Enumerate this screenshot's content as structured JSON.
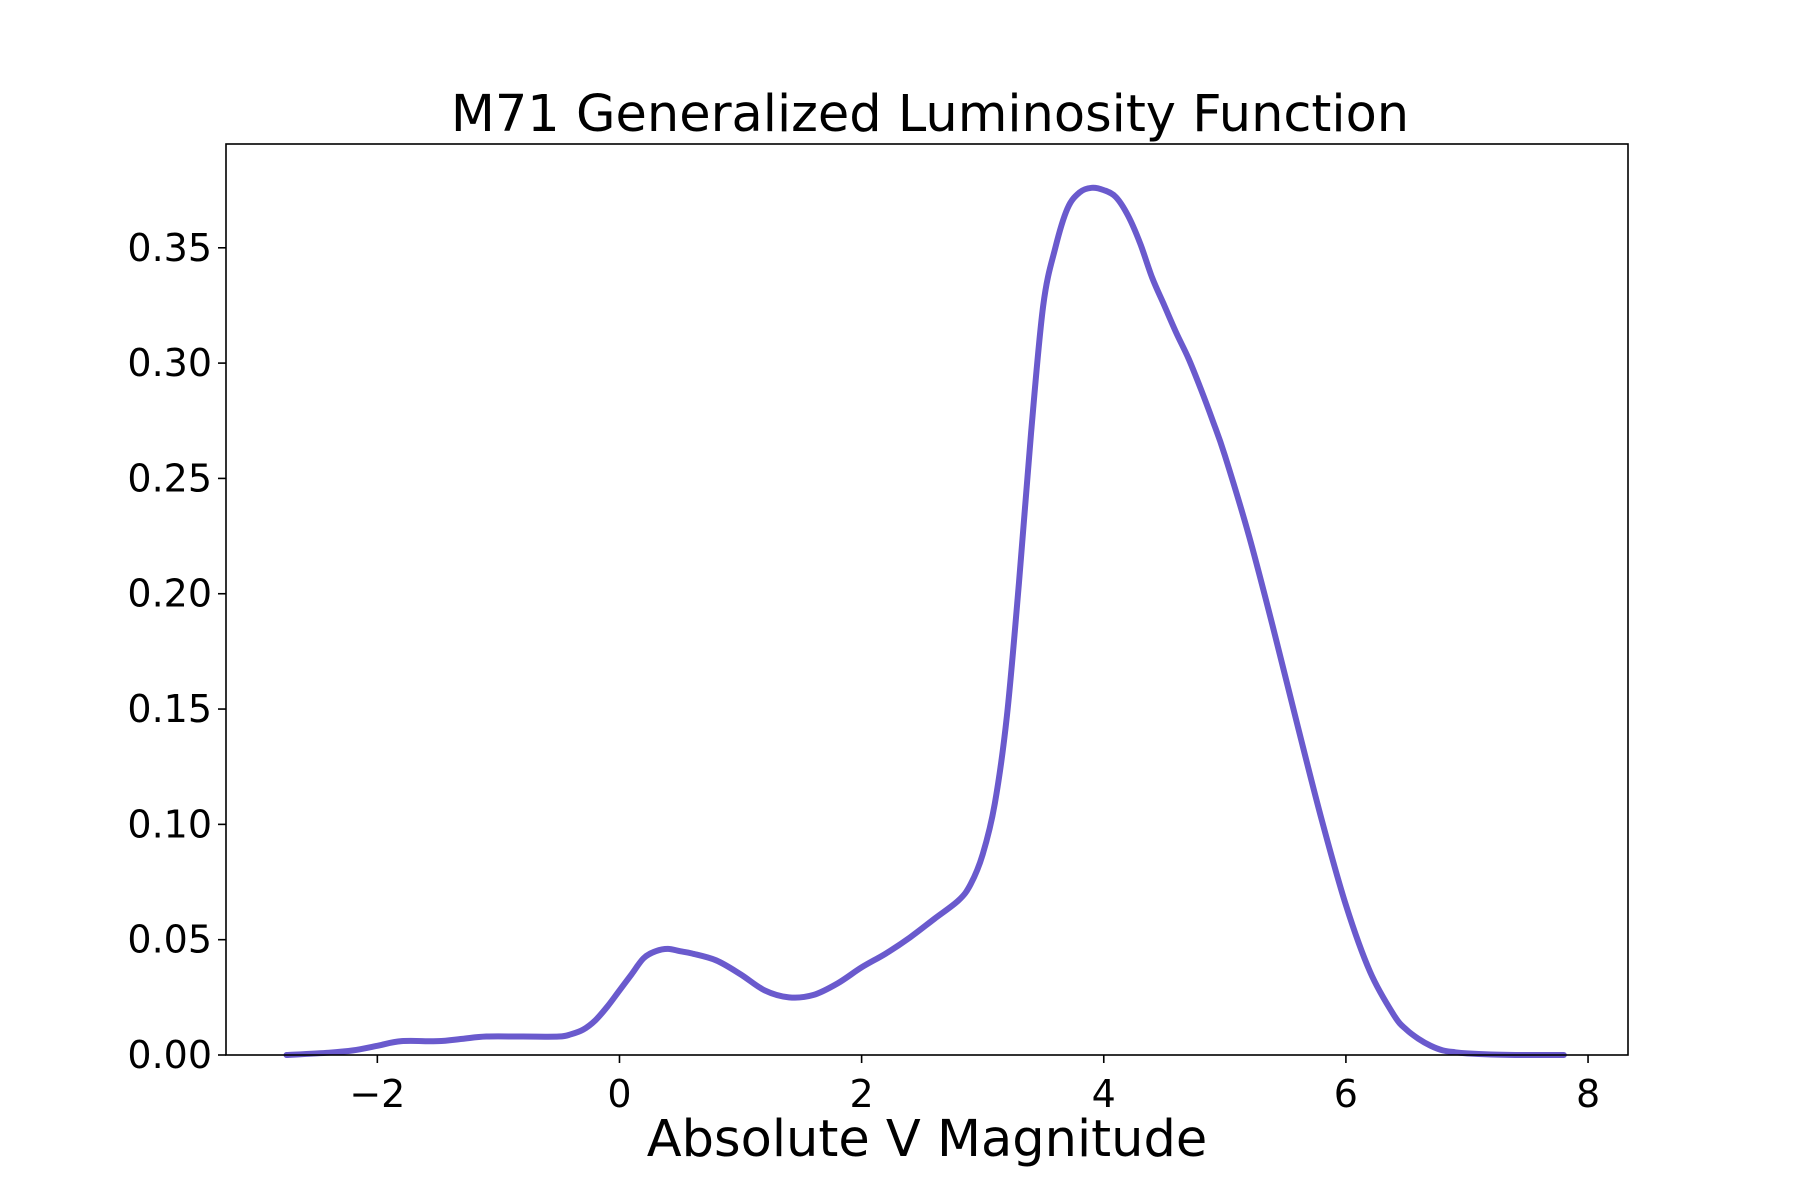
{
  "chart_data": {
    "type": "line",
    "title": "M71 Generalized Luminosity Function",
    "xlabel": "Absolute V Magnitude",
    "ylabel": "",
    "xlim": [
      -3.25,
      8.33
    ],
    "ylim": [
      0.0,
      0.395
    ],
    "xticks": [
      -2,
      0,
      2,
      4,
      6,
      8
    ],
    "xtick_labels": [
      "−2",
      "0",
      "2",
      "4",
      "6",
      "8"
    ],
    "yticks": [
      0.0,
      0.05,
      0.1,
      0.15,
      0.2,
      0.25,
      0.3,
      0.35
    ],
    "ytick_labels": [
      "0.00",
      "0.05",
      "0.10",
      "0.15",
      "0.20",
      "0.25",
      "0.30",
      "0.35"
    ],
    "grid": false,
    "legend": "none",
    "series": [
      {
        "color": "#6a5acd",
        "x": [
          -2.75,
          -2.4,
          -2.2,
          -2.0,
          -1.8,
          -1.5,
          -1.3,
          -1.1,
          -0.8,
          -0.5,
          -0.4,
          -0.3,
          -0.2,
          -0.1,
          0.0,
          0.1,
          0.2,
          0.3,
          0.4,
          0.5,
          0.6,
          0.8,
          1.0,
          1.2,
          1.4,
          1.6,
          1.8,
          2.0,
          2.2,
          2.4,
          2.6,
          2.8,
          2.9,
          3.0,
          3.1,
          3.2,
          3.3,
          3.4,
          3.5,
          3.6,
          3.7,
          3.8,
          3.9,
          4.0,
          4.1,
          4.2,
          4.3,
          4.4,
          4.5,
          4.6,
          4.7,
          4.8,
          4.9,
          5.0,
          5.2,
          5.4,
          5.6,
          5.8,
          6.0,
          6.2,
          6.4,
          6.5,
          6.6,
          6.7,
          6.8,
          6.9,
          7.0,
          7.2,
          7.4,
          7.6,
          7.8
        ],
        "y": [
          0.0,
          0.001,
          0.002,
          0.004,
          0.006,
          0.006,
          0.007,
          0.008,
          0.008,
          0.008,
          0.009,
          0.011,
          0.015,
          0.021,
          0.028,
          0.035,
          0.042,
          0.045,
          0.046,
          0.045,
          0.044,
          0.041,
          0.035,
          0.028,
          0.025,
          0.026,
          0.031,
          0.038,
          0.044,
          0.051,
          0.059,
          0.067,
          0.074,
          0.087,
          0.109,
          0.147,
          0.205,
          0.27,
          0.325,
          0.35,
          0.367,
          0.374,
          0.376,
          0.375,
          0.372,
          0.364,
          0.352,
          0.337,
          0.325,
          0.313,
          0.302,
          0.289,
          0.275,
          0.26,
          0.225,
          0.185,
          0.143,
          0.102,
          0.065,
          0.036,
          0.017,
          0.011,
          0.007,
          0.004,
          0.002,
          0.0012,
          0.0007,
          0.0002,
          0.0,
          0.0,
          0.0
        ]
      }
    ]
  }
}
